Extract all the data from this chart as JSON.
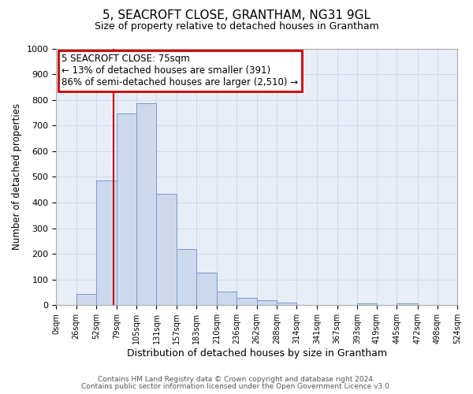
{
  "title": "5, SEACROFT CLOSE, GRANTHAM, NG31 9GL",
  "subtitle": "Size of property relative to detached houses in Grantham",
  "xlabel": "Distribution of detached houses by size in Grantham",
  "ylabel": "Number of detached properties",
  "bar_color": "#ccd9ed",
  "bar_edge_color": "#7799cc",
  "background_color": "#ffffff",
  "grid_color": "#c5d0e0",
  "annotation_box_color": "#cc0000",
  "vline_color": "#cc0000",
  "vline_x": 75,
  "annotation_title": "5 SEACROFT CLOSE: 75sqm",
  "annotation_line1": "← 13% of detached houses are smaller (391)",
  "annotation_line2": "86% of semi-detached houses are larger (2,510) →",
  "footer1": "Contains HM Land Registry data © Crown copyright and database right 2024.",
  "footer2": "Contains public sector information licensed under the Open Government Licence v3.0.",
  "bin_edges": [
    0,
    26,
    52,
    79,
    105,
    131,
    157,
    183,
    210,
    236,
    262,
    288,
    314,
    341,
    367,
    393,
    419,
    445,
    472,
    498,
    524
  ],
  "bin_counts": [
    0,
    45,
    485,
    748,
    788,
    435,
    218,
    127,
    53,
    30,
    18,
    10,
    0,
    0,
    0,
    8,
    0,
    7,
    0,
    0
  ],
  "tick_labels": [
    "0sqm",
    "26sqm",
    "52sqm",
    "79sqm",
    "105sqm",
    "131sqm",
    "157sqm",
    "183sqm",
    "210sqm",
    "236sqm",
    "262sqm",
    "288sqm",
    "314sqm",
    "341sqm",
    "367sqm",
    "393sqm",
    "419sqm",
    "445sqm",
    "472sqm",
    "498sqm",
    "524sqm"
  ],
  "ylim": [
    0,
    1000
  ],
  "yticks": [
    0,
    100,
    200,
    300,
    400,
    500,
    600,
    700,
    800,
    900,
    1000
  ]
}
